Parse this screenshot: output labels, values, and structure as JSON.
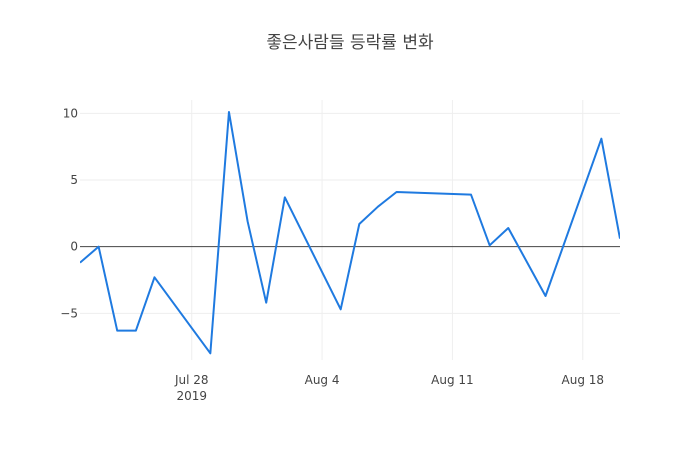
{
  "chart_data": {
    "type": "line",
    "title": "좋은사람들 등락률 변화",
    "xlabel": "",
    "ylabel": "",
    "x_tick_labels": [
      {
        "date": "2019-07-28",
        "label": "Jul 28",
        "sublabel": "2019"
      },
      {
        "date": "2019-08-04",
        "label": "Aug 4",
        "sublabel": ""
      },
      {
        "date": "2019-08-11",
        "label": "Aug 11",
        "sublabel": ""
      },
      {
        "date": "2019-08-18",
        "label": "Aug 18",
        "sublabel": ""
      }
    ],
    "y_ticks": [
      10,
      5,
      0,
      -5
    ],
    "xlim": [
      "2019-07-22",
      "2019-08-20"
    ],
    "ylim": [
      -8.5,
      11
    ],
    "grid": true,
    "line_color": "#1f7ae0",
    "series": [
      {
        "x": [
          "2019-07-22",
          "2019-07-23",
          "2019-07-24",
          "2019-07-25",
          "2019-07-26",
          "2019-07-29",
          "2019-07-30",
          "2019-07-31",
          "2019-08-01",
          "2019-08-02",
          "2019-08-05",
          "2019-08-06",
          "2019-08-07",
          "2019-08-08",
          "2019-08-12",
          "2019-08-13",
          "2019-08-14",
          "2019-08-16",
          "2019-08-19",
          "2019-08-20"
        ],
        "y": [
          -1.2,
          0.0,
          -6.3,
          -6.3,
          -2.3,
          -8.0,
          10.1,
          1.9,
          -4.2,
          3.7,
          -4.7,
          1.7,
          3.0,
          4.1,
          3.9,
          0.1,
          1.4,
          -3.7,
          8.1,
          0.6
        ]
      }
    ]
  }
}
